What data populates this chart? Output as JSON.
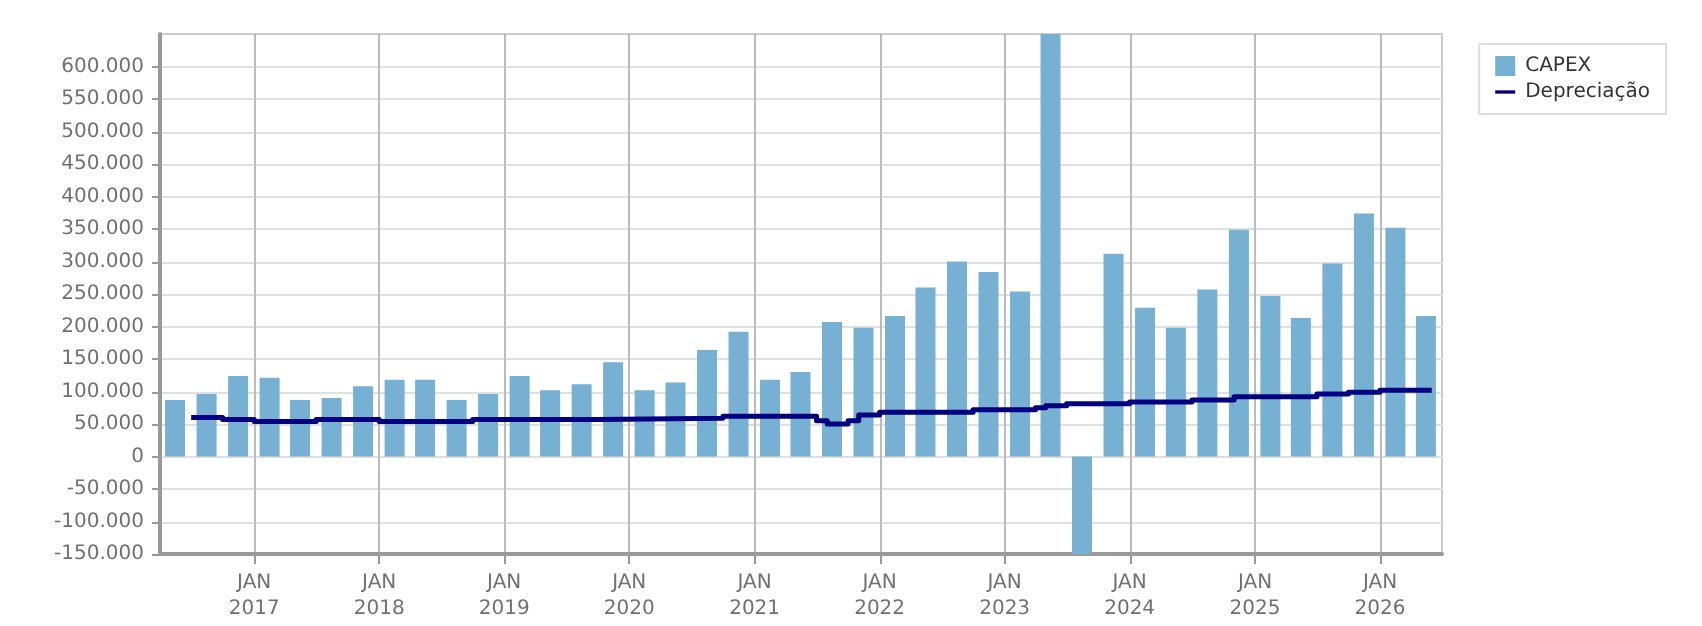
{
  "chart_data": {
    "type": "bar",
    "x": [
      "2016-05-15",
      "2016-08-15",
      "2016-11-15",
      "2017-02-15",
      "2017-05-15",
      "2017-08-15",
      "2017-11-15",
      "2018-02-15",
      "2018-05-15",
      "2018-08-15",
      "2018-11-15",
      "2019-02-15",
      "2019-05-15",
      "2019-08-15",
      "2019-11-15",
      "2020-02-15",
      "2020-05-15",
      "2020-08-15",
      "2020-11-15",
      "2021-02-15",
      "2021-05-15",
      "2021-08-15",
      "2021-11-15",
      "2022-02-15",
      "2022-05-15",
      "2022-08-15",
      "2022-11-15",
      "2023-02-15",
      "2023-05-15",
      "2023-08-15",
      "2023-11-15",
      "2024-02-15",
      "2024-05-15",
      "2024-08-15",
      "2024-11-15",
      "2025-02-15",
      "2025-05-15",
      "2025-08-15",
      "2025-11-15",
      "2026-02-15",
      "2026-05-15"
    ],
    "series": [
      {
        "name": "CAPEX",
        "color": "#76b0d2",
        "values": [
          87000,
          96000,
          124000,
          121000,
          87000,
          90000,
          108000,
          118000,
          118000,
          87000,
          96000,
          124000,
          102000,
          111000,
          145000,
          102000,
          114000,
          164000,
          192000,
          118000,
          130000,
          207000,
          198000,
          216000,
          260000,
          300000,
          284000,
          254000,
          650000,
          -150000,
          312000,
          229000,
          198000,
          257000,
          349000,
          247000,
          213000,
          297000,
          374000,
          352000,
          216000
        ]
      },
      {
        "name": "Depreciação",
        "type": "step",
        "color": "#000080",
        "x": [
          "2016-07-01",
          "2016-10-01",
          "2017-01-01",
          "2017-07-01",
          "2018-01-01",
          "2018-10-01",
          "2019-10-01",
          "2020-10-01",
          "2021-07-01",
          "2021-08-01",
          "2021-10-01",
          "2021-11-01",
          "2022-01-01",
          "2022-10-01",
          "2023-04-01",
          "2023-05-01",
          "2023-07-01",
          "2024-01-01",
          "2024-07-01",
          "2024-11-01",
          "2025-07-01",
          "2025-10-01",
          "2026-01-01",
          "2026-06-01"
        ],
        "values": [
          60000,
          57000,
          54000,
          57000,
          54000,
          57000,
          59000,
          62000,
          55000,
          50000,
          55000,
          64000,
          68000,
          72000,
          75000,
          78000,
          81000,
          84000,
          87000,
          92000,
          96000,
          99000,
          102000,
          102000
        ]
      }
    ],
    "xlim": [
      "2016-04-01",
      "2026-07-01"
    ],
    "xticks": [
      {
        "value": "2017-01-01",
        "label": "JAN\n2017"
      },
      {
        "value": "2018-01-01",
        "label": "JAN\n2018"
      },
      {
        "value": "2019-01-01",
        "label": "JAN\n2019"
      },
      {
        "value": "2020-01-01",
        "label": "JAN\n2020"
      },
      {
        "value": "2021-01-01",
        "label": "JAN\n2021"
      },
      {
        "value": "2022-01-01",
        "label": "JAN\n2022"
      },
      {
        "value": "2023-01-01",
        "label": "JAN\n2023"
      },
      {
        "value": "2024-01-01",
        "label": "JAN\n2024"
      },
      {
        "value": "2025-01-01",
        "label": "JAN\n2025"
      },
      {
        "value": "2026-01-01",
        "label": "JAN\n2026"
      }
    ],
    "ylim": [
      -150000,
      650000
    ],
    "yticks": [
      {
        "value": -150000,
        "label": "-150.000"
      },
      {
        "value": -100000,
        "label": "-100.000"
      },
      {
        "value": -50000,
        "label": "-50.000"
      },
      {
        "value": 0,
        "label": "0"
      },
      {
        "value": 50000,
        "label": "50.000"
      },
      {
        "value": 100000,
        "label": "100.000"
      },
      {
        "value": 150000,
        "label": "150.000"
      },
      {
        "value": 200000,
        "label": "200.000"
      },
      {
        "value": 250000,
        "label": "250.000"
      },
      {
        "value": 300000,
        "label": "300.000"
      },
      {
        "value": 350000,
        "label": "350.000"
      },
      {
        "value": 400000,
        "label": "400.000"
      },
      {
        "value": 450000,
        "label": "450.000"
      },
      {
        "value": 500000,
        "label": "500.000"
      },
      {
        "value": 550000,
        "label": "550.000"
      },
      {
        "value": 600000,
        "label": "600.000"
      }
    ],
    "grid": true,
    "legend": "top right"
  }
}
